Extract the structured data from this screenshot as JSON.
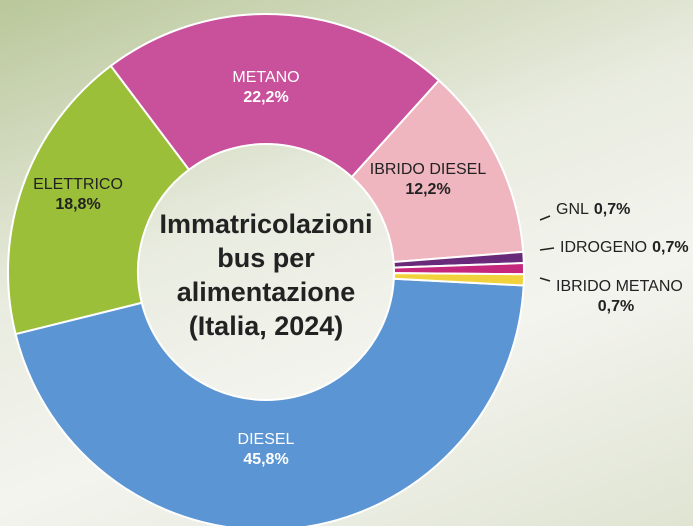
{
  "chart_data": {
    "type": "donut",
    "title": "Immatricolazioni bus per alimentazione (Italia, 2024)",
    "categories": [
      "DIESEL",
      "ELETTRICO",
      "METANO",
      "IBRIDO DIESEL",
      "GNL",
      "IDROGENO",
      "IBRIDO METANO"
    ],
    "values": [
      45.8,
      18.8,
      22.2,
      12.2,
      0.7,
      0.7,
      0.7
    ],
    "value_labels": [
      "45,8%",
      "18,8%",
      "22,2%",
      "12,2%",
      "0,7%",
      "0,7%",
      "0,7%"
    ],
    "colors": [
      "#5b95d3",
      "#9cbf3a",
      "#c9509a",
      "#efb6bf",
      "#6a2a7a",
      "#c4277c",
      "#f1d23c"
    ]
  }
}
